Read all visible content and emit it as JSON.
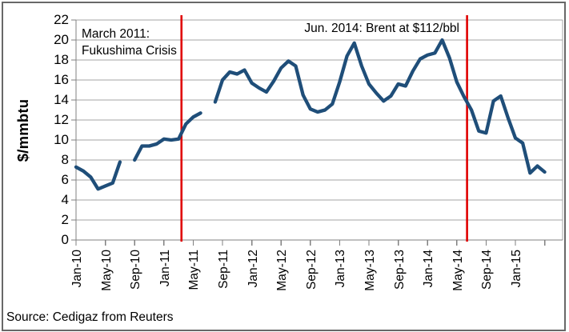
{
  "source_note": "Source: Cedigaz from Reuters",
  "annotations": {
    "fukushima": {
      "line1": "March 2011:",
      "line2": "Fukushima Crisis"
    },
    "brent": {
      "text": "Jun. 2014: Brent at $112/bbl"
    }
  },
  "colors": {
    "line": "#1F4E79",
    "event_line": "#E00000",
    "gridline": "#A6A6A6",
    "axis": "#808080",
    "text": "#000000",
    "border": "#686868",
    "background": "#FFFFFF"
  },
  "chart_data": {
    "type": "line",
    "title": "",
    "xlabel": "",
    "ylabel": "$/mmbtu",
    "ylim": [
      0,
      22
    ],
    "ytick_step": 2,
    "grid": true,
    "legend": "none",
    "x": [
      "Jan-10",
      "Feb-10",
      "Mar-10",
      "Apr-10",
      "May-10",
      "Jun-10",
      "Jul-10",
      "Aug-10",
      "Sep-10",
      "Oct-10",
      "Nov-10",
      "Dec-10",
      "Jan-11",
      "Feb-11",
      "Mar-11",
      "Apr-11",
      "May-11",
      "Jun-11",
      "Jul-11",
      "Aug-11",
      "Sep-11",
      "Oct-11",
      "Nov-11",
      "Dec-11",
      "Jan-12",
      "Feb-12",
      "Mar-12",
      "Apr-12",
      "May-12",
      "Jun-12",
      "Jul-12",
      "Aug-12",
      "Sep-12",
      "Oct-12",
      "Nov-12",
      "Dec-12",
      "Jan-13",
      "Feb-13",
      "Mar-13",
      "Apr-13",
      "May-13",
      "Jun-13",
      "Jul-13",
      "Aug-13",
      "Sep-13",
      "Oct-13",
      "Nov-13",
      "Dec-13",
      "Jan-14",
      "Feb-14",
      "Mar-14",
      "Apr-14",
      "May-14",
      "Jun-14",
      "Jul-14",
      "Aug-14",
      "Sep-14",
      "Oct-14",
      "Nov-14",
      "Dec-14",
      "Jan-15",
      "Feb-15",
      "Mar-15",
      "Apr-15",
      "May-15"
    ],
    "x_tick_labels": [
      "Jan-10",
      "May-10",
      "Sep-10",
      "Jan-11",
      "May-11",
      "Sep-11",
      "Jan-12",
      "May-12",
      "Sep-12",
      "Jan-13",
      "May-13",
      "Sep-13",
      "Jan-14",
      "May-14",
      "Sep-14",
      "Jan-15"
    ],
    "series": [
      {
        "color": "#1F4E79",
        "values": [
          7.3,
          6.9,
          6.3,
          5.1,
          5.4,
          5.7,
          7.8,
          null,
          8.0,
          9.4,
          9.4,
          9.6,
          10.1,
          10.0,
          10.1,
          11.6,
          12.3,
          12.7,
          null,
          13.8,
          16.0,
          16.8,
          16.6,
          17.0,
          15.7,
          15.2,
          14.8,
          15.9,
          17.2,
          17.9,
          17.4,
          14.5,
          13.1,
          12.8,
          13.0,
          13.6,
          15.8,
          18.4,
          19.7,
          17.4,
          15.6,
          14.7,
          13.9,
          14.4,
          15.6,
          15.4,
          16.9,
          18.1,
          18.5,
          18.7,
          20.0,
          18.2,
          15.8,
          14.3,
          13.0,
          10.9,
          10.7,
          13.9,
          14.4,
          12.2,
          10.2,
          9.7,
          6.7,
          7.4,
          6.8
        ]
      }
    ],
    "event_lines": [
      {
        "month": "Mar-11",
        "fraction_after": 0.4,
        "color": "#E00000",
        "label": "March 2011: Fukushima Crisis"
      },
      {
        "month": "Jun-14",
        "fraction_after": 0.4,
        "color": "#E00000",
        "label": "Jun. 2014: Brent at $112/bbl"
      }
    ]
  }
}
